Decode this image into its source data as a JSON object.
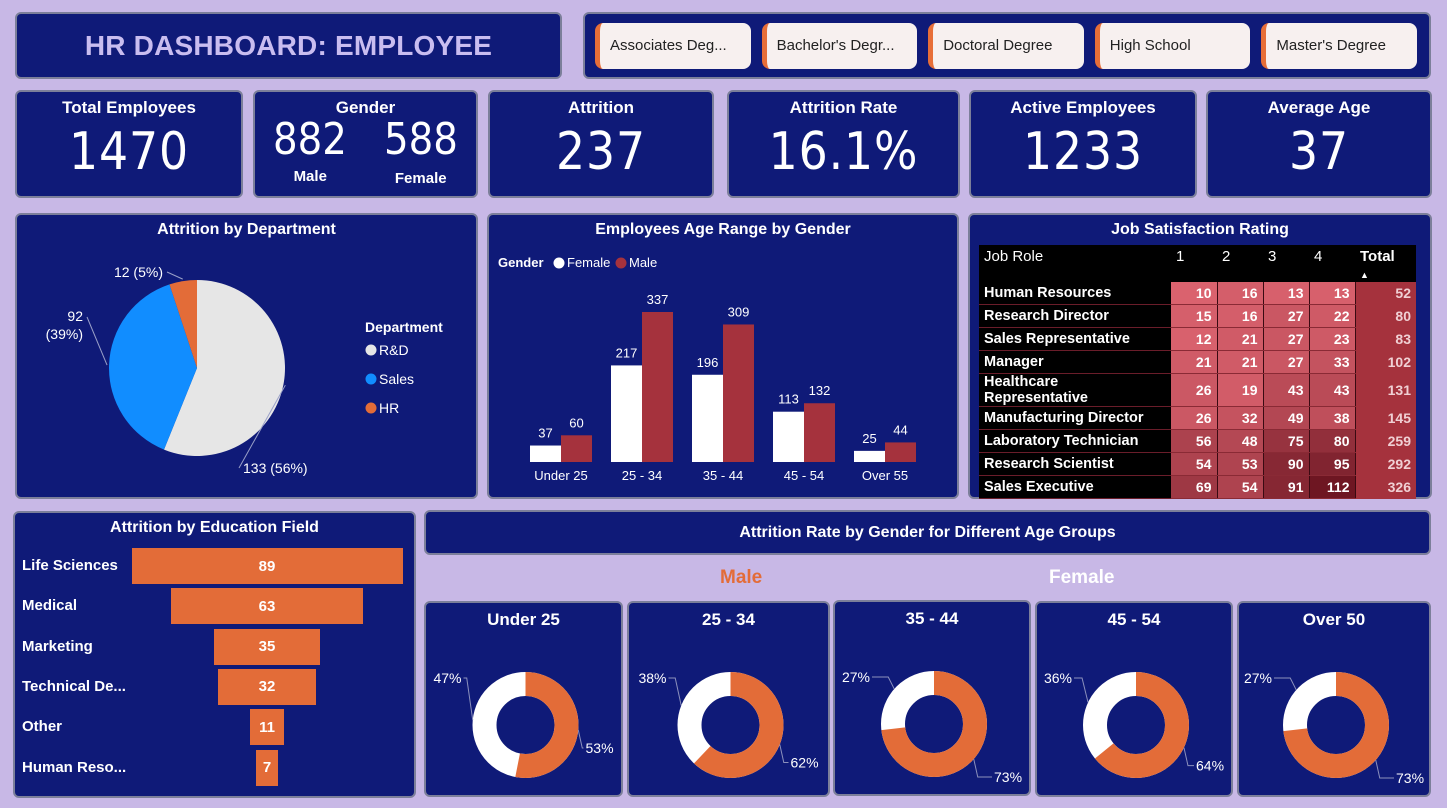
{
  "header": {
    "title": "HR DASHBOARD: EMPLOYEE"
  },
  "slicer": {
    "items": [
      "Associates Deg...",
      "Bachelor's Degr...",
      "Doctoral Degree",
      "High School",
      "Master's Degree"
    ]
  },
  "kpis": {
    "total_employees": {
      "label": "Total Employees",
      "value": "1470"
    },
    "gender": {
      "label": "Gender",
      "male_value": "882",
      "male_label": "Male",
      "female_value": "588",
      "female_label": "Female"
    },
    "attrition": {
      "label": "Attrition",
      "value": "237"
    },
    "attrition_rate": {
      "label": "Attrition Rate",
      "value": "16.1%"
    },
    "active_employees": {
      "label": "Active Employees",
      "value": "1233"
    },
    "average_age": {
      "label": "Average Age",
      "value": "37"
    }
  },
  "colors": {
    "navy": "#0f1a78",
    "orange": "#e36c38",
    "white": "#ffffff",
    "lightgray": "#e6e6e6",
    "blue": "#118dff",
    "maroon": "#a5323d",
    "lavender": "#c8b8e6"
  },
  "chart_data": [
    {
      "id": "attrition_by_department",
      "type": "pie",
      "title": "Attrition by Department",
      "legend_title": "Department",
      "legend_position": "right",
      "categories": [
        "R&D",
        "Sales",
        "HR"
      ],
      "values": [
        133,
        92,
        12
      ],
      "percent_labels": [
        "56%",
        "39%",
        "5%"
      ],
      "data_labels": [
        "133 (56%)",
        "92 (39%)",
        "12 (5%)"
      ],
      "colors": [
        "#e6e6e6",
        "#118dff",
        "#e36c38"
      ]
    },
    {
      "id": "age_range_by_gender",
      "type": "bar",
      "title": "Employees Age Range by Gender",
      "legend_title": "Gender",
      "legend_position": "top-left",
      "categories": [
        "Under 25",
        "25 - 34",
        "35 - 44",
        "45 - 54",
        "Over 55"
      ],
      "series": [
        {
          "name": "Female",
          "color": "#ffffff",
          "values": [
            37,
            217,
            196,
            113,
            25
          ]
        },
        {
          "name": "Male",
          "color": "#a5323d",
          "values": [
            60,
            337,
            309,
            132,
            44
          ]
        }
      ],
      "ylim": [
        0,
        337
      ],
      "grid": false
    },
    {
      "id": "job_satisfaction_rating",
      "type": "heatmap",
      "title": "Job Satisfaction Rating",
      "columns": [
        "Job Role",
        "1",
        "2",
        "3",
        "4",
        "Total"
      ],
      "sort_column": "Total",
      "rows": [
        {
          "role": "Human Resources",
          "values": [
            10,
            16,
            13,
            13
          ],
          "total": 52
        },
        {
          "role": "Research Director",
          "values": [
            15,
            16,
            27,
            22
          ],
          "total": 80
        },
        {
          "role": "Sales Representative",
          "values": [
            12,
            21,
            27,
            23
          ],
          "total": 83
        },
        {
          "role": "Manager",
          "values": [
            21,
            21,
            27,
            33
          ],
          "total": 102
        },
        {
          "role": "Healthcare Representative",
          "values": [
            26,
            19,
            43,
            43
          ],
          "total": 131
        },
        {
          "role": "Manufacturing Director",
          "values": [
            26,
            32,
            49,
            38
          ],
          "total": 145
        },
        {
          "role": "Laboratory Technician",
          "values": [
            56,
            48,
            75,
            80
          ],
          "total": 259
        },
        {
          "role": "Research Scientist",
          "values": [
            54,
            53,
            90,
            95
          ],
          "total": 292
        },
        {
          "role": "Sales Executive",
          "values": [
            69,
            54,
            91,
            112
          ],
          "total": 326
        }
      ]
    },
    {
      "id": "attrition_by_education_field",
      "type": "bar",
      "orientation": "funnel",
      "title": "Attrition by Education Field",
      "categories": [
        "Life Sciences",
        "Medical",
        "Marketing",
        "Technical De...",
        "Other",
        "Human Reso..."
      ],
      "values": [
        89,
        63,
        35,
        32,
        11,
        7
      ],
      "color": "#e36c38"
    },
    {
      "id": "attrition_rate_by_gender_age",
      "type": "pie",
      "variant": "donut",
      "title": "Attrition Rate by Gender for Different Age Groups",
      "series_labels": {
        "male": "Male",
        "female": "Female"
      },
      "series_colors": {
        "male": "#e36c38",
        "female": "#ffffff"
      },
      "groups": [
        {
          "label": "Under 25",
          "male_pct": 53,
          "female_pct": 47
        },
        {
          "label": "25 - 34",
          "male_pct": 62,
          "female_pct": 38
        },
        {
          "label": "35 - 44",
          "male_pct": 73,
          "female_pct": 27
        },
        {
          "label": "45 - 54",
          "male_pct": 64,
          "female_pct": 36
        },
        {
          "label": "Over 50",
          "male_pct": 73,
          "female_pct": 27
        }
      ]
    }
  ]
}
